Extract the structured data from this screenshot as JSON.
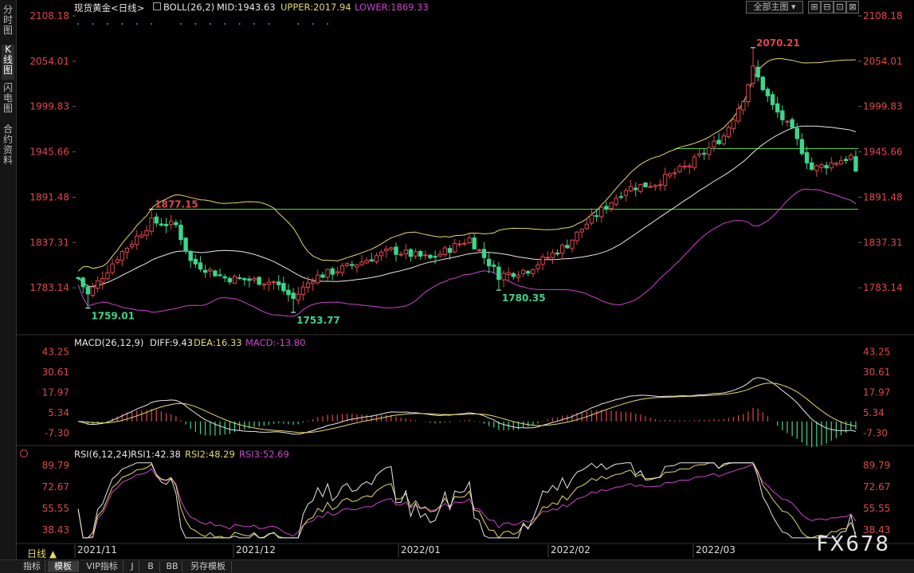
{
  "left_tabs": [
    "分时图",
    "K线图",
    "闪电图",
    "合约资料"
  ],
  "header": {
    "symbol": "现货黄金<日线>",
    "boll_label": "BOLL(26,2)",
    "mid": "MID:1943.63",
    "upper": "UPPER:2017.94",
    "lower": "LOWER:1869.33",
    "full_button": "全部主图",
    "window_buttons": [
      "⊞",
      "⊟",
      "⊡",
      "⊠"
    ]
  },
  "colors": {
    "up": "#e0474c",
    "down": "#3cd68c",
    "mid": "#e8e8e8",
    "upper": "#e6d96a",
    "lower": "#cc44cc",
    "hline": "#5ad23a",
    "axis_label": "#e0474c",
    "diff": "#e8e8e8",
    "dea": "#e6d96a",
    "rsi1": "#e8e8e8",
    "rsi2": "#e6d96a",
    "rsi3": "#cc44cc",
    "price_ann_high": "#e0474c",
    "price_ann_low": "#3cd68c",
    "dots": "#4a8fe0"
  },
  "macd_header": {
    "label": "MACD(26,12,9)",
    "diff": "DIFF:9.43",
    "dea": "DEA:16.33",
    "macd": "MACD:-13.80"
  },
  "rsi_header": {
    "label": "RSI(6,12,24)",
    "rsi1": "RSI1:42.38",
    "rsi2": "RSI2:48.29",
    "rsi3": "RSI3:52.69"
  },
  "date_labels": [
    "2021/11",
    "2021/12",
    "2022/01",
    "2022/02",
    "2022/03"
  ],
  "period_label": "日线 ▲",
  "bottom_tabs": [
    "指标",
    "模板",
    "VIP指标",
    "J",
    "B",
    "BB",
    "另存模板"
  ],
  "watermark": "FX678",
  "chart_data": [
    {
      "type": "candlestick",
      "title": "现货黄金<日线>",
      "ylim": [
        1729.0,
        2108.18
      ],
      "y_ticks": [
        "2108.18",
        "2054.01",
        "1999.83",
        "1945.66",
        "1891.48",
        "1837.31",
        "1783.14"
      ],
      "annotations": [
        {
          "text": "2070.21",
          "value": 2070.21,
          "kind": "high",
          "index": 138
        },
        {
          "text": "1877.15",
          "value": 1877.15,
          "kind": "high",
          "index": 15
        },
        {
          "text": "1759.01",
          "value": 1759.01,
          "kind": "low",
          "index": 2
        },
        {
          "text": "1753.77",
          "value": 1753.77,
          "kind": "low",
          "index": 44
        },
        {
          "text": "1780.35",
          "value": 1780.35,
          "kind": "low",
          "index": 86
        }
      ],
      "horizontal_lines": [
        1949.5,
        1877.15
      ],
      "mid_last": 1943.63,
      "upper_last": 2017.94,
      "lower_last": 1869.33,
      "candles": []
    },
    {
      "type": "macd",
      "title": "MACD(26,12,9)",
      "ylim": [
        -12,
        46
      ],
      "y_ticks": [
        "43.25",
        "30.61",
        "17.97",
        "5.34",
        "-7.30"
      ],
      "diff_last": 9.43,
      "dea_last": 16.33,
      "macd_last": -13.8
    },
    {
      "type": "line",
      "title": "RSI(6,12,24)",
      "ylim": [
        30,
        95
      ],
      "y_ticks": [
        "89.79",
        "72.67",
        "55.55",
        "38.43"
      ],
      "series": [
        {
          "name": "RSI1",
          "last": 42.38
        },
        {
          "name": "RSI2",
          "last": 48.29
        },
        {
          "name": "RSI3",
          "last": 52.69
        }
      ]
    }
  ]
}
